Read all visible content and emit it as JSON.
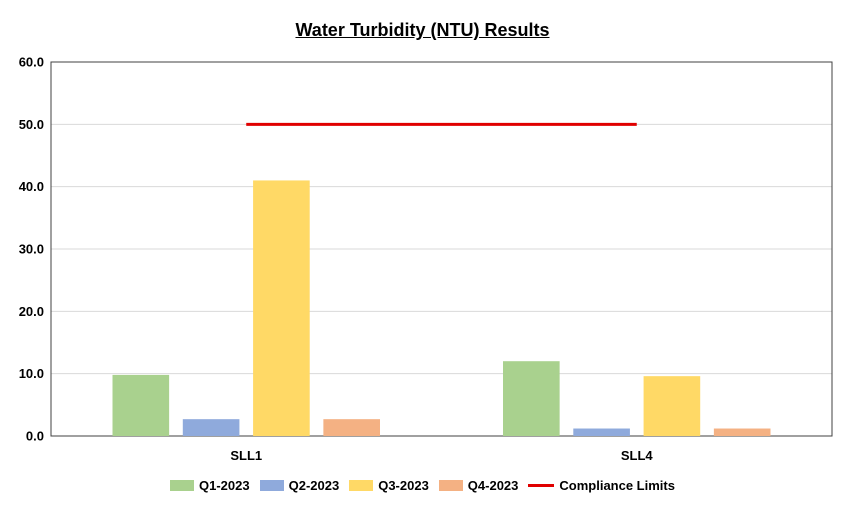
{
  "chart_data": {
    "type": "bar",
    "title": "Water Turbidity (NTU) Results",
    "xlabel": "",
    "ylabel": "",
    "categories": [
      "SLL1",
      "SLL4"
    ],
    "series": [
      {
        "name": "Q1-2023",
        "values": [
          9.8,
          12.0
        ],
        "color": "#a9d18e"
      },
      {
        "name": "Q2-2023",
        "values": [
          2.7,
          1.2
        ],
        "color": "#8faadc"
      },
      {
        "name": "Q3-2023",
        "values": [
          41.0,
          9.6
        ],
        "color": "#ffd966"
      },
      {
        "name": "Q4-2023",
        "values": [
          2.7,
          1.2
        ],
        "color": "#f4b183"
      }
    ],
    "reference_line": {
      "name": "Compliance Limits",
      "value": 50.0,
      "color": "#e00000"
    },
    "ylim": [
      0,
      60
    ],
    "yticks": [
      "0.0",
      "10.0",
      "20.0",
      "30.0",
      "40.0",
      "50.0",
      "60.0"
    ],
    "grid": true,
    "legend_position": "bottom"
  }
}
